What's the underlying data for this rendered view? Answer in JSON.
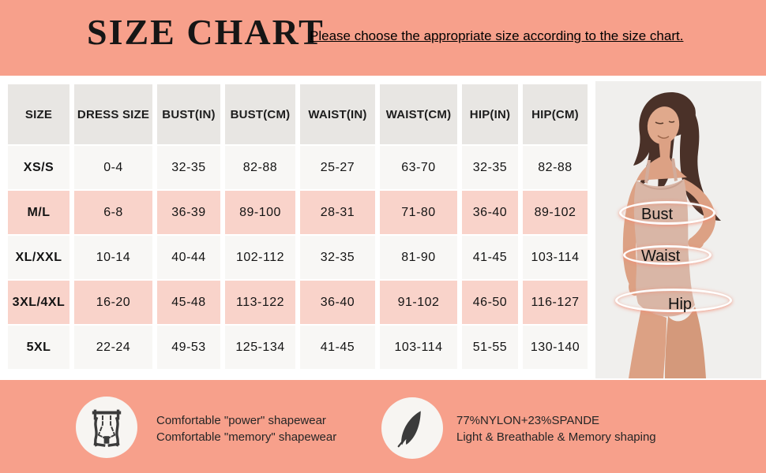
{
  "colors": {
    "background": "#F7A08B",
    "panel": "#FFFFFF",
    "header_cell": "#E8E6E3",
    "row_light": "#F8F7F5",
    "row_pink": "#F9D3CA",
    "photo_background": "#F0EFED",
    "icon_dark": "#3B3B3B"
  },
  "header": {
    "title": "SIZE CHART",
    "subtitle": "Please choose the appropriate size according to the size chart."
  },
  "table": {
    "columns": [
      "SIZE",
      "DRESS SIZE",
      "BUST(IN)",
      "BUST(CM)",
      "WAIST(IN)",
      "WAIST(CM)",
      "HIP(IN)",
      "HIP(CM)"
    ],
    "rows": [
      {
        "size": "XS/S",
        "highlight": false,
        "values": [
          "0-4",
          "32-35",
          "82-88",
          "25-27",
          "63-70",
          "32-35",
          "82-88"
        ]
      },
      {
        "size": "M/L",
        "highlight": true,
        "values": [
          "6-8",
          "36-39",
          "89-100",
          "28-31",
          "71-80",
          "36-40",
          "89-102"
        ]
      },
      {
        "size": "XL/XXL",
        "highlight": false,
        "values": [
          "10-14",
          "40-44",
          "102-112",
          "32-35",
          "81-90",
          "41-45",
          "103-114"
        ]
      },
      {
        "size": "3XL/4XL",
        "highlight": true,
        "values": [
          "16-20",
          "45-48",
          "113-122",
          "36-40",
          "91-102",
          "46-50",
          "116-127"
        ]
      },
      {
        "size": "5XL",
        "highlight": false,
        "values": [
          "22-24",
          "49-53",
          "125-134",
          "41-45",
          "103-114",
          "51-55",
          "130-140"
        ]
      }
    ]
  },
  "model_annotations": {
    "bust": "Bust",
    "waist": "Waist",
    "hip": "Hip"
  },
  "features": [
    {
      "icon": "shapewear-icon",
      "line1": "Comfortable \"power\" shapewear",
      "line2": "Comfortable \"memory\" shapewear"
    },
    {
      "icon": "feather-icon",
      "line1": "77%NYLON+23%SPANDE",
      "line2": "Light & Breathable & Memory shaping"
    }
  ]
}
